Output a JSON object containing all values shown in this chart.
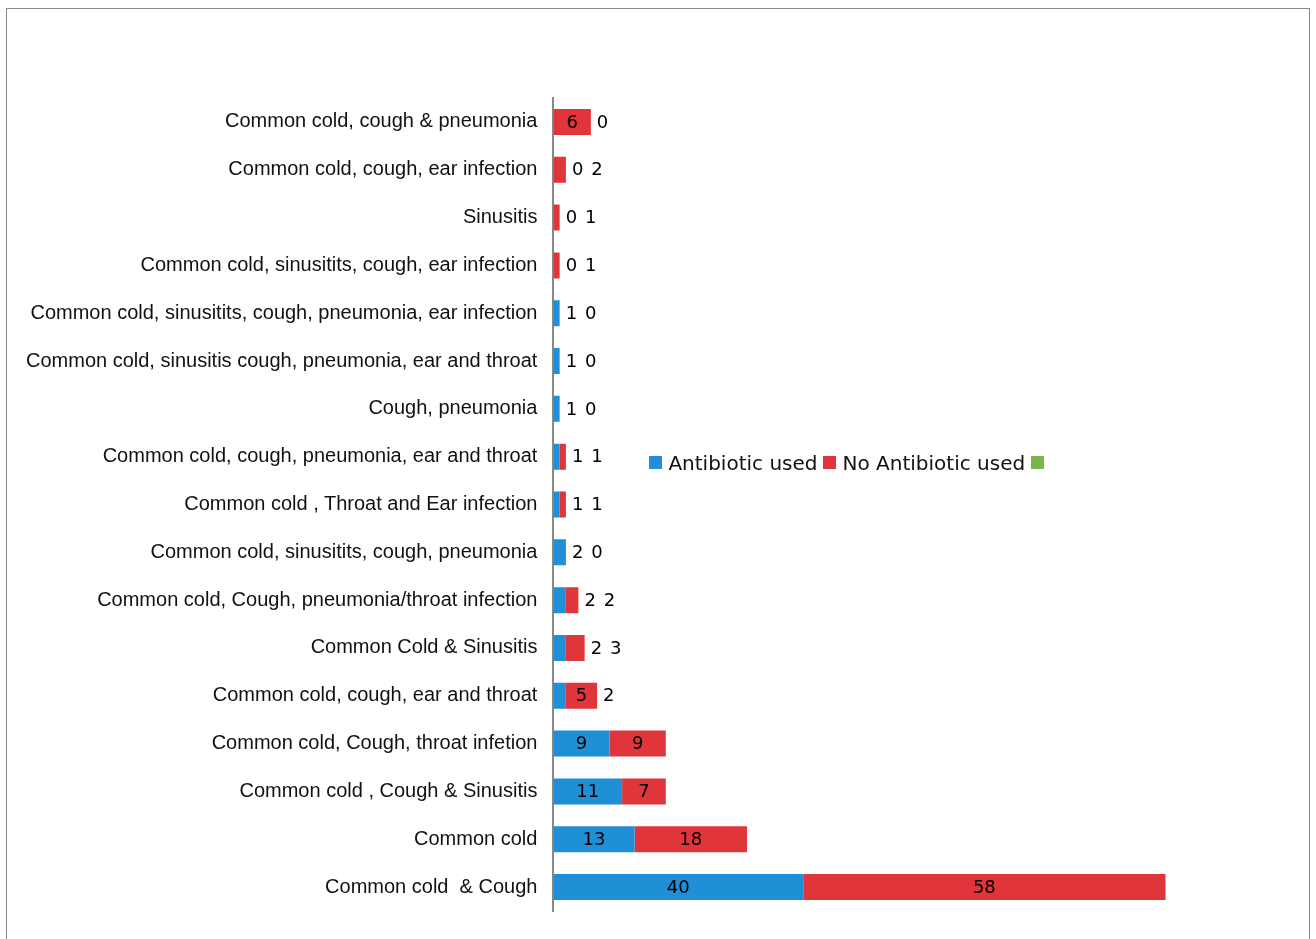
{
  "chart_data": {
    "type": "bar",
    "orientation": "horizontal",
    "stacked": true,
    "data_labels": true,
    "legend": "center",
    "categories": [
      "Common cold, cough & pneumonia",
      "Common cold, cough, ear infection",
      "Sinusitis",
      "Common cold, sinusitits, cough, ear infection",
      "Common cold, sinusitits, cough, pneumonia, ear infection",
      "Common cold, sinusitis cough, pneumonia, ear and throat",
      "Cough, pneumonia",
      "Common cold, cough, pneumonia, ear and throat",
      "Common cold , Throat and Ear infection",
      "Common cold, sinusitits, cough, pneumonia",
      "Common cold, Cough, pneumonia/throat infection",
      "Common Cold & Sinusitis",
      "Common cold, cough, ear and throat",
      "Common cold, Cough, throat infetion",
      "Common cold , Cough & Sinusitis",
      "Common cold",
      "Common cold  & Cough"
    ],
    "series": [
      {
        "name": "Antibiotic used",
        "color": "#1f8fd6",
        "values": [
          0,
          0,
          0,
          0,
          1,
          1,
          1,
          1,
          1,
          2,
          2,
          2,
          2,
          9,
          11,
          13,
          40
        ]
      },
      {
        "name": "No Antibiotic used",
        "color": "#e0353a",
        "values": [
          6,
          2,
          1,
          1,
          0,
          0,
          0,
          1,
          1,
          0,
          2,
          3,
          5,
          9,
          7,
          18,
          58
        ]
      }
    ]
  }
}
